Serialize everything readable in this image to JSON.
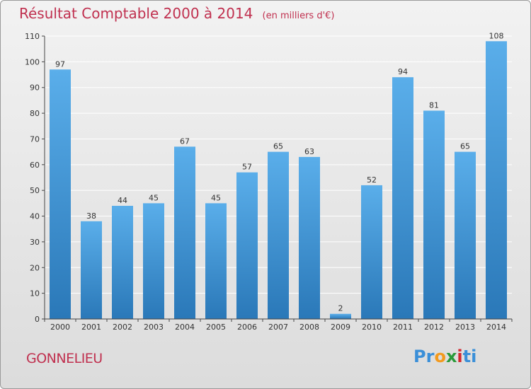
{
  "title": "Résultat Comptable 2000 à 2014",
  "subtitle": "(en milliers d'€)",
  "place_name": "GONNELIEU",
  "logo": {
    "text": "Proxiti",
    "letters": [
      "P",
      "r",
      "o",
      "x",
      "i",
      "t",
      "i"
    ],
    "colors": [
      "#3a8fd8",
      "#3a8fd8",
      "#f39a1e",
      "#2a9a3a",
      "#d4272f",
      "#3a8fd8",
      "#3a8fd8"
    ]
  },
  "colors": {
    "bar_top": "#5aaeea",
    "bar_bottom": "#2a78b8",
    "grid": "#ffffff",
    "axis": "#444444",
    "text": "#333333",
    "title": "#c0304f"
  },
  "chart_data": {
    "type": "bar",
    "title": "Résultat Comptable 2000 à 2014",
    "subtitle": "(en milliers d'€)",
    "xlabel": "",
    "ylabel": "",
    "categories": [
      "2000",
      "2001",
      "2002",
      "2003",
      "2004",
      "2005",
      "2006",
      "2007",
      "2008",
      "2009",
      "2010",
      "2011",
      "2012",
      "2013",
      "2014"
    ],
    "values": [
      97,
      38,
      44,
      45,
      67,
      45,
      57,
      65,
      63,
      2,
      52,
      94,
      81,
      65,
      108
    ],
    "ylim": [
      0,
      110
    ],
    "yticks": [
      0,
      10,
      20,
      30,
      40,
      50,
      60,
      70,
      80,
      90,
      100,
      110
    ],
    "grid": true,
    "data_labels": true
  }
}
